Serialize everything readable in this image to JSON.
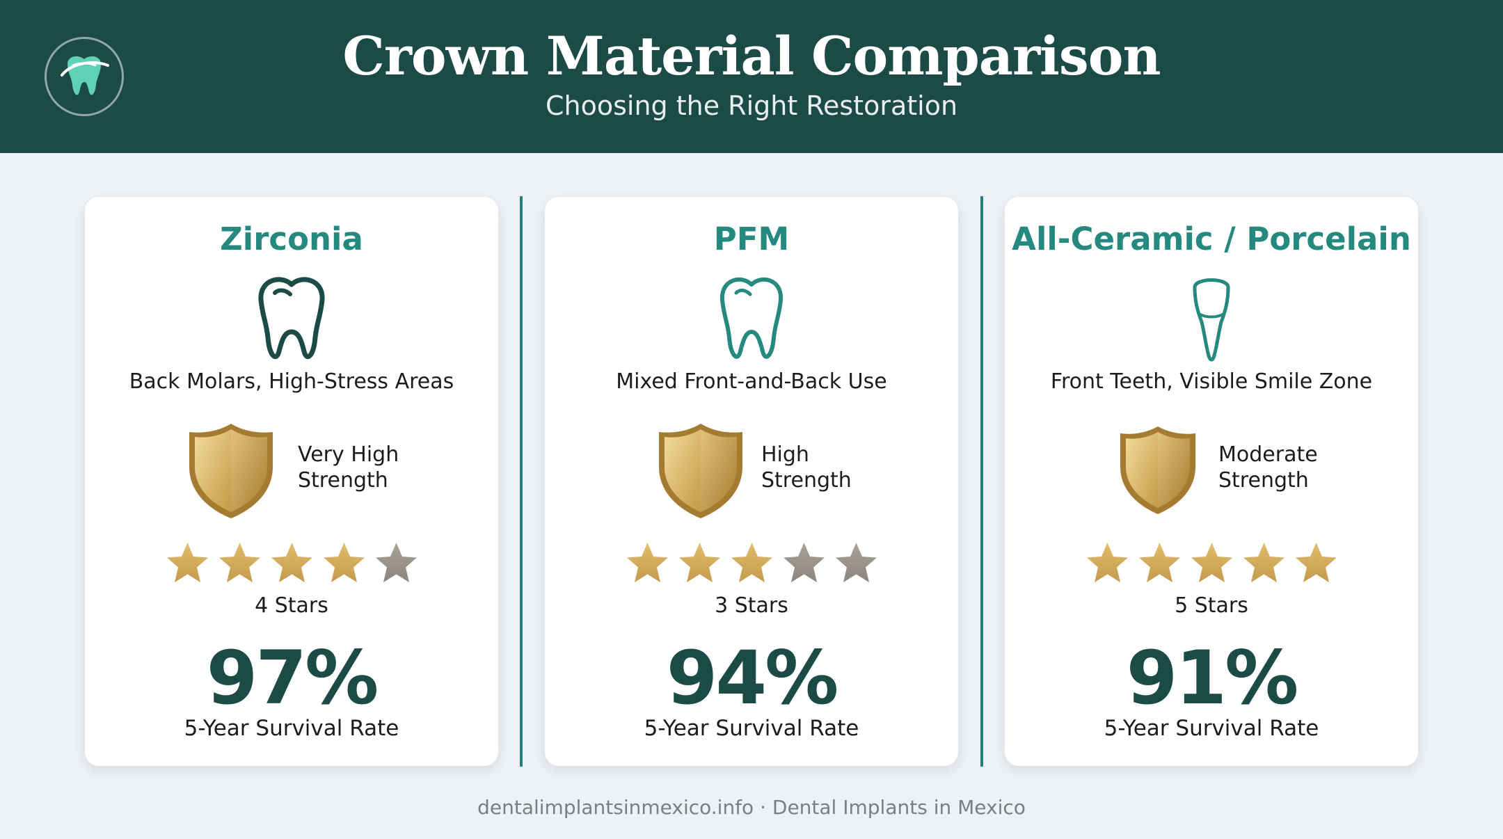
{
  "header": {
    "title": "Crown Material Comparison",
    "subtitle": "Choosing the Right Restoration"
  },
  "cards": [
    {
      "name": "Zirconia",
      "tooth_icon": "molar-tooth-icon",
      "usage": "Back Molars, High-Stress Areas",
      "strength_line1": "Very High",
      "strength_line2": "Strength",
      "rating": 4,
      "rating_label": "4 Stars",
      "survival": "97%",
      "survival_label": "5-Year Survival Rate"
    },
    {
      "name": "PFM",
      "tooth_icon": "molar-tooth-icon",
      "usage": "Mixed Front-and-Back Use",
      "strength_line1": "High",
      "strength_line2": "Strength",
      "rating": 3,
      "rating_label": "3 Stars",
      "survival": "94%",
      "survival_label": "5-Year Survival Rate"
    },
    {
      "name": "All-Ceramic / Porcelain",
      "tooth_icon": "incisor-tooth-icon",
      "usage": "Front Teeth, Visible Smile Zone",
      "strength_line1": "Moderate",
      "strength_line2": "Strength",
      "rating": 5,
      "rating_label": "5 Stars",
      "survival": "91%",
      "survival_label": "5-Year Survival Rate"
    }
  ],
  "footer": "dentalimplantsinmexico.info · Dental Implants in Mexico",
  "colors": {
    "header_bg": "#1b4a47",
    "accent": "#25897f",
    "star_filled": "#d0aa58",
    "star_empty": "#9e9890",
    "shield_gold": "#d4ae5f"
  }
}
